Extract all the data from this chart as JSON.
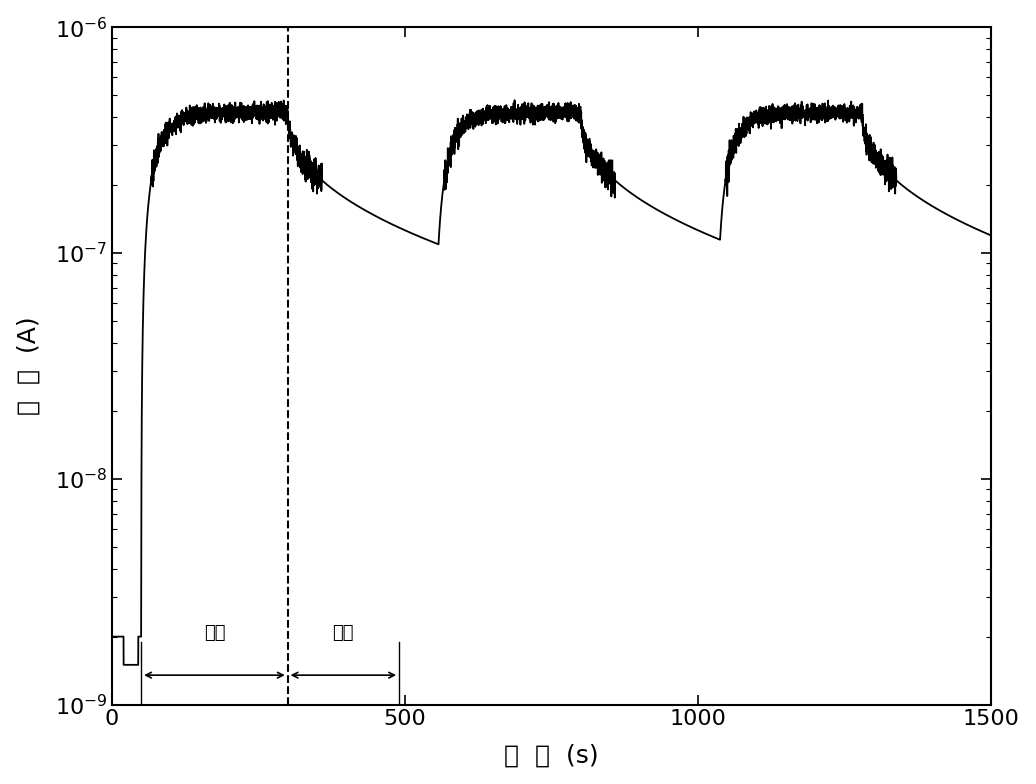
{
  "xlabel": "时  间  (s)",
  "ylabel": "电  流  (A)",
  "xlim": [
    0,
    1500
  ],
  "ylim_log": [
    -9,
    -6
  ],
  "background_color": "#ffffff",
  "line_color": "#000000",
  "dashed_line_color": "#000000",
  "annotation_light": "光照",
  "annotation_dark": "黑暗",
  "dashed_x": 300,
  "dark_current": 2e-09,
  "photo_current_peak": 4.2e-07,
  "rise_tau": 25,
  "decay_tau": 130,
  "light_on_times": [
    50,
    550,
    1030
  ],
  "light_off_times": [
    300,
    800,
    1280
  ],
  "total_time": 1530,
  "noise_amplitude": 1.8e-08
}
